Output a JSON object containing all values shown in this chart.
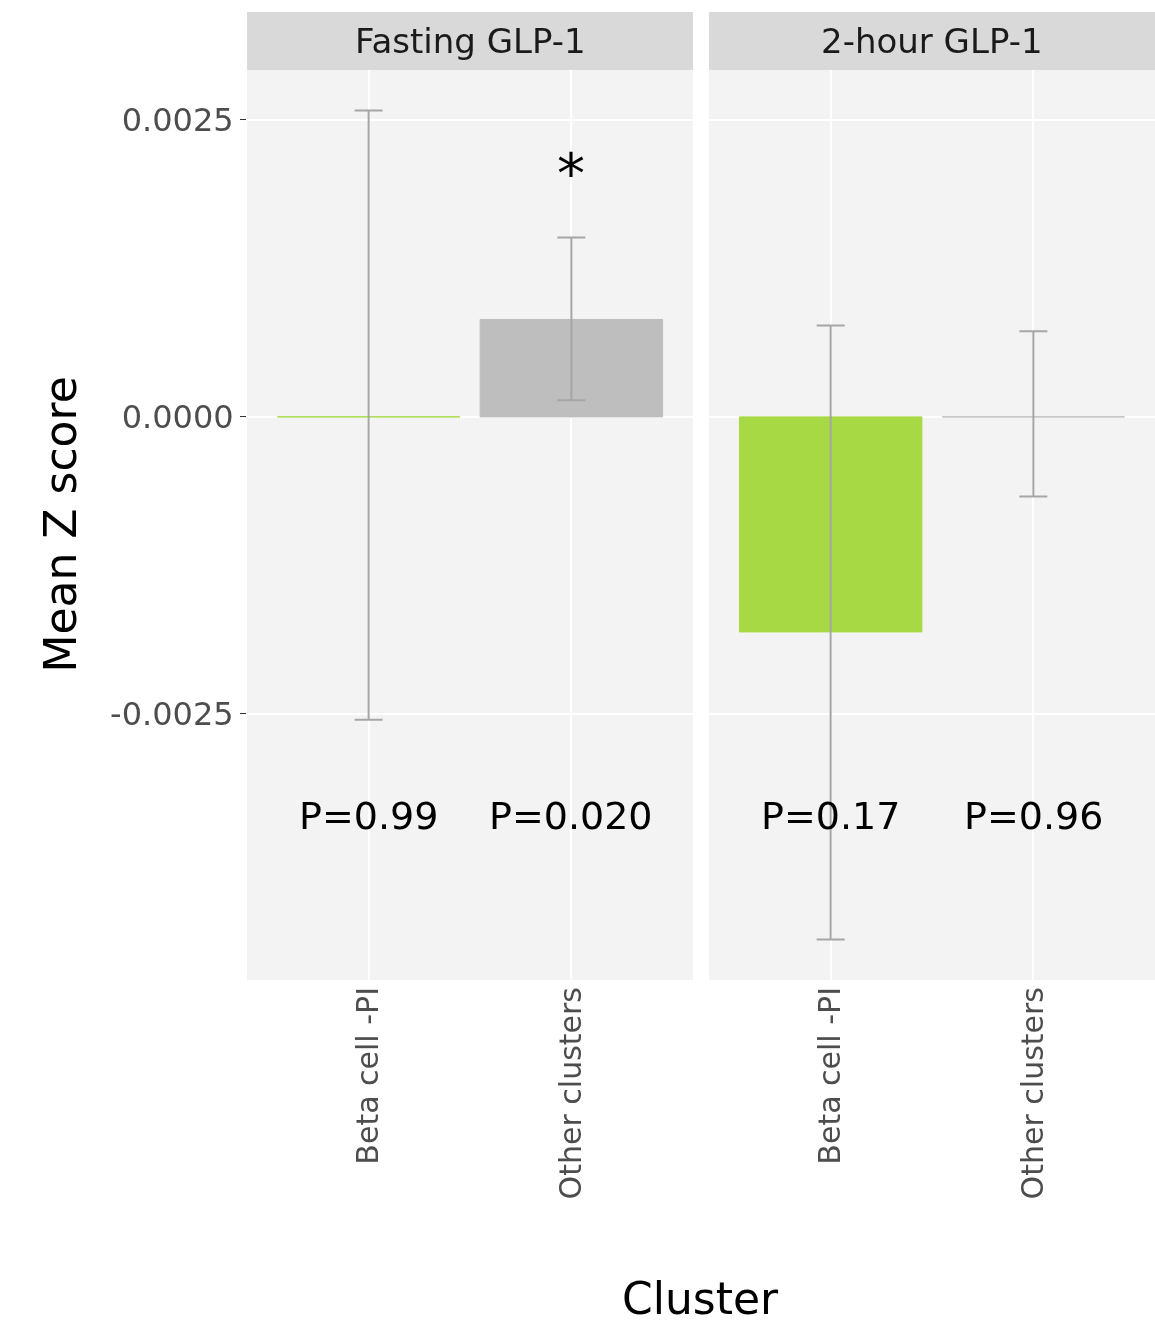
{
  "chart_data": [
    {
      "type": "bar",
      "title": "Fasting GLP-1",
      "ylabel": "Mean Z score",
      "xlabel": "Cluster",
      "categories": [
        "Beta cell -PI",
        "Other clusters"
      ],
      "values": [
        0,
        0.00082
      ],
      "colors": [
        "#a6d944",
        "#bebebe"
      ],
      "errors": [
        [
          -0.00255,
          0.00258
        ],
        [
          0.00014,
          0.00151
        ]
      ],
      "ylim": [
        -0.00474,
        0.00292
      ],
      "yticks": [
        {
          "value": 0.0025,
          "label": "0.0025"
        },
        {
          "value": 0,
          "label": "0.0000"
        },
        {
          "value": -0.0025,
          "label": "-0.0025"
        }
      ],
      "grid": true,
      "annotations": [
        "*",
        "P=0.99",
        "P=0.020"
      ]
    },
    {
      "type": "bar",
      "title": "2-hour GLP-1",
      "categories": [
        "Beta cell -PI",
        "Other clusters"
      ],
      "values": [
        -0.00181,
        0
      ],
      "colors": [
        "#a6d944",
        "#bebebe"
      ],
      "errors": [
        [
          -0.0044,
          0.00077
        ],
        [
          -0.00067,
          0.00072
        ]
      ],
      "ylim": [
        -0.00474,
        0.00292
      ],
      "yticks": [
        0.0025,
        0,
        -0.0025
      ],
      "grid": true,
      "tick_labels": "x",
      "annotations": [
        "P=0.17",
        "P=0.96"
      ]
    }
  ]
}
